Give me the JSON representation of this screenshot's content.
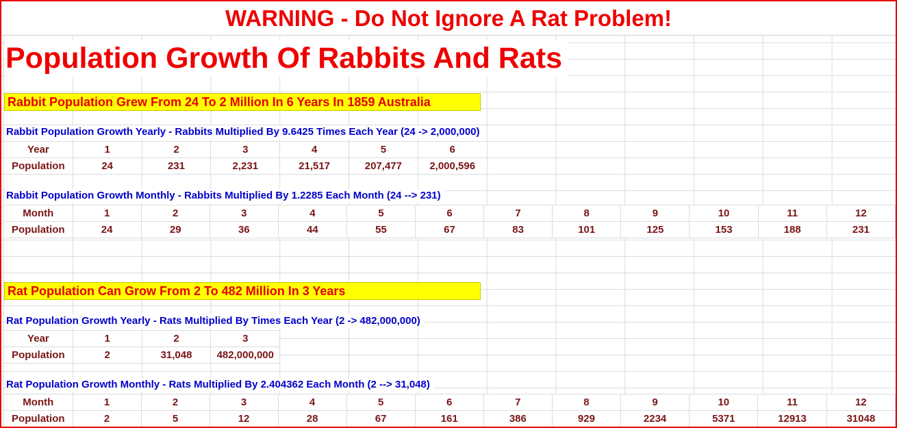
{
  "banner": "WARNING - Do Not Ignore A Rat Problem!",
  "title": "Population Growth Of Rabbits And Rats",
  "rabbit": {
    "heading": "Rabbit Population Grew From 24 To 2 Million In 6 Years In 1859 Australia",
    "yearly": {
      "label": "Rabbit Population Growth Yearly - Rabbits Multiplied By 9.6425 Times Each Year (24 -> 2,000,000)",
      "row1_header": "Year",
      "row2_header": "Population",
      "periods": [
        "1",
        "2",
        "3",
        "4",
        "5",
        "6"
      ],
      "values": [
        "24",
        "231",
        "2,231",
        "21,517",
        "207,477",
        "2,000,596"
      ]
    },
    "monthly": {
      "label": "Rabbit Population Growth Monthly - Rabbits Multiplied By 1.2285 Each Month (24 --> 231)",
      "row1_header": "Month",
      "row2_header": "Population",
      "periods": [
        "1",
        "2",
        "3",
        "4",
        "5",
        "6",
        "7",
        "8",
        "9",
        "10",
        "11",
        "12"
      ],
      "values": [
        "24",
        "29",
        "36",
        "44",
        "55",
        "67",
        "83",
        "101",
        "125",
        "153",
        "188",
        "231"
      ]
    }
  },
  "rat": {
    "heading": "Rat Population Can Grow From 2 To 482 Million In 3 Years",
    "yearly": {
      "label": "Rat Population Growth Yearly - Rats Multiplied By  Times Each Year (2 -> 482,000,000)",
      "row1_header": "Year",
      "row2_header": "Population",
      "periods": [
        "1",
        "2",
        "3"
      ],
      "values": [
        "2",
        "31,048",
        "482,000,000"
      ]
    },
    "monthly": {
      "label": "Rat Population Growth Monthly - Rats Multiplied By 2.404362 Each Month (2 --> 31,048)",
      "row1_header": "Month",
      "row2_header": "Population",
      "periods": [
        "1",
        "2",
        "3",
        "4",
        "5",
        "6",
        "7",
        "8",
        "9",
        "10",
        "11",
        "12"
      ],
      "values": [
        "2",
        "5",
        "12",
        "28",
        "67",
        "161",
        "386",
        "929",
        "2234",
        "5371",
        "12913",
        "31048"
      ]
    }
  },
  "colors": {
    "warning_red": "#ee0000",
    "label_blue": "#0000c8",
    "cell_text": "#7a1414",
    "highlight": "#ffff00"
  }
}
